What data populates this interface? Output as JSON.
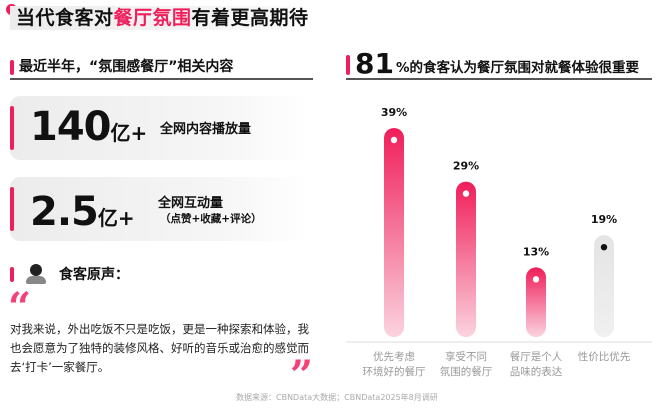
{
  "title": {
    "part1": "当代食客对",
    "highlight": "餐厅氛围",
    "part2": "有着更高期待"
  },
  "left": {
    "subtitle": "最近半年，“氛围感餐厅”相关内容",
    "stats": [
      {
        "value": "140",
        "unit": "亿+",
        "label": "全网内容播放量",
        "note": ""
      },
      {
        "value": "2.5",
        "unit": "亿+",
        "label": "全网互动量",
        "note": "（点赞+收藏+评论）"
      }
    ],
    "voice_title": "食客原声：",
    "quote": "对我来说，外出吃饭不只是吃饭，更是一种探索和体验，我也会愿意为了独特的装修风格、好听的音乐或治愈的感觉而去‘打卡’一家餐厅。",
    "quote_open": "“",
    "quote_close": "”"
  },
  "right": {
    "headline_num": "81",
    "headline_text": "%的食客认为餐厅氛围对就餐体验很重要"
  },
  "chart_data": {
    "type": "bar",
    "categories": [
      "优先考虑\n环境好的餐厅",
      "享受不同\n氛围的餐厅",
      "餐厅是个人\n品味的表达",
      "性价比优先"
    ],
    "values": [
      39,
      29,
      13,
      19
    ],
    "data_labels": [
      "39%",
      "29%",
      "13%",
      "19%"
    ],
    "colors": [
      "#f01e5a",
      "#f01e5a",
      "#f01e5a",
      "#e6e6e6"
    ],
    "ylim": [
      0,
      39
    ],
    "grid": false
  },
  "source": "数据来源：CBNData大数据；CBNData2025年8月调研",
  "colors": {
    "accent": "#f01e5a"
  }
}
